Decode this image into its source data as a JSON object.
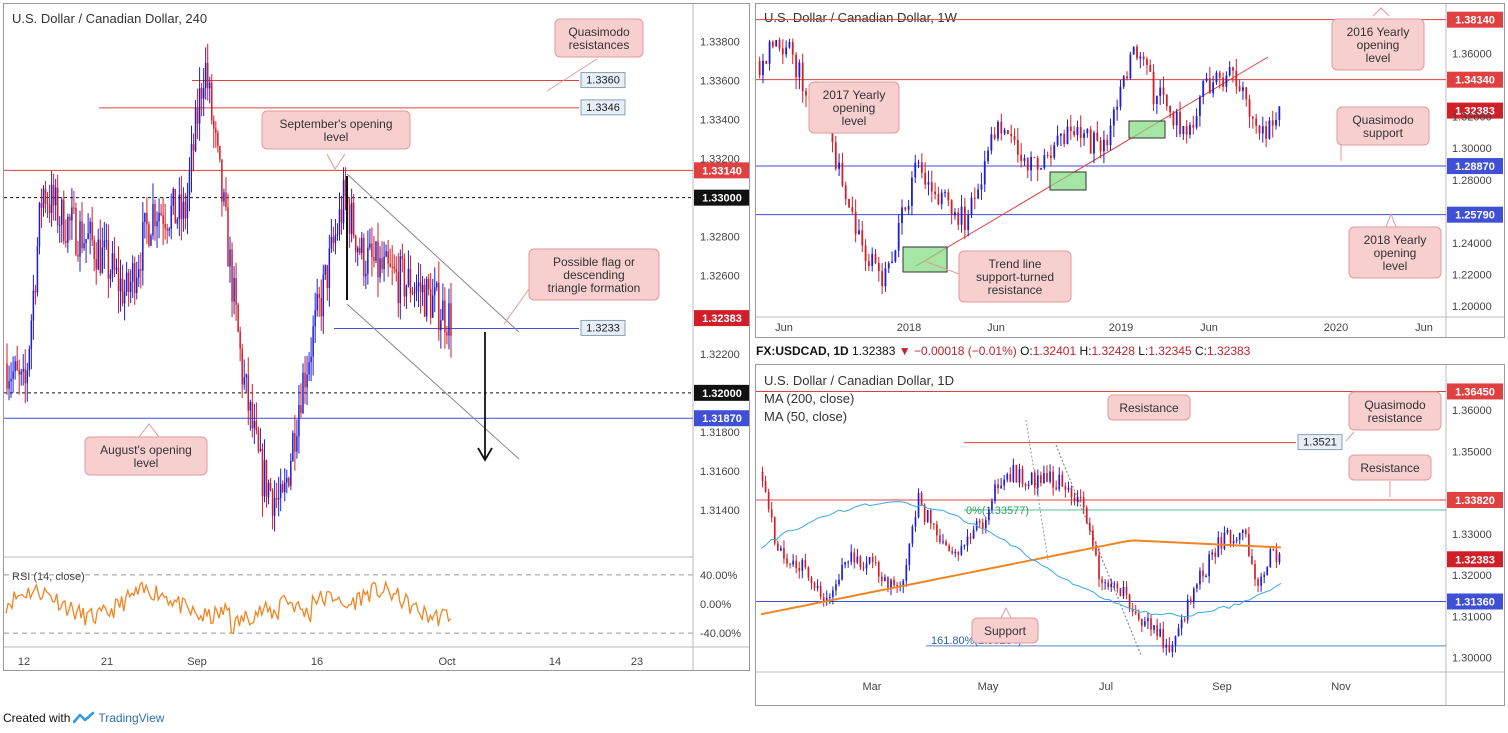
{
  "footer": {
    "created_with": "Created with",
    "brand": "TradingView"
  },
  "info_bar": {
    "symbol": "FX:USDCAD, 1D",
    "last": "1.32383",
    "change": "−0.00018 (−0.01%)",
    "o_label": "O:",
    "o": "1.32401",
    "h_label": "H:",
    "h": "1.32428",
    "l_label": "L:",
    "l": "1.32345",
    "c_label": "C:",
    "c": "1.32383"
  },
  "colors": {
    "bull": "#1f1fd1",
    "bear": "#d11f2a",
    "resistance": "#e04040",
    "support": "#3f4fd6",
    "rsi": "#f08522",
    "ma200": "#f08522",
    "ma50": "#3aa8e6",
    "note_bg": "#f7cfcf",
    "note_border": "#e39a9a",
    "fib": "#5fbf8f"
  },
  "chart_data": [
    {
      "type": "candlestick",
      "title": "U.S. Dollar / Canadian Dollar, 240",
      "ylim": [
        1.312,
        1.339
      ],
      "x_ticks": [
        "12",
        "21",
        "Sep",
        "16",
        "Oct",
        "14",
        "23"
      ],
      "y_ticks": [
        "1.33800",
        "1.33600",
        "1.33400",
        "1.33200",
        "1.32800",
        "1.32600",
        "1.32200",
        "1.31800",
        "1.31600",
        "1.31400"
      ],
      "levels": [
        {
          "value": 1.336,
          "label": "1.3360",
          "kind": "resistance"
        },
        {
          "value": 1.3346,
          "label": "1.3346",
          "kind": "resistance"
        },
        {
          "value": 1.3314,
          "label": "1.33140",
          "kind": "resistance"
        },
        {
          "value": 1.33,
          "label": "1.33000",
          "kind": "round"
        },
        {
          "value": 1.3233,
          "label": "1.3233",
          "kind": "support"
        },
        {
          "value": 1.32,
          "label": "1.32000",
          "kind": "round"
        },
        {
          "value": 1.3187,
          "label": "1.31870",
          "kind": "support"
        }
      ],
      "last_price": "1.32383",
      "annotations": [
        "Quasimodo resistances",
        "September's opening level",
        "Possible flag or descending triangle formation",
        "August's opening level"
      ],
      "rsi": {
        "label": "RSI (14, close)",
        "ticks": [
          "40.00%",
          "0.00%",
          "-40.00%"
        ]
      }
    },
    {
      "type": "candlestick",
      "title": "U.S. Dollar / Canadian Dollar, 1W",
      "ylim": [
        1.195,
        1.385
      ],
      "x_ticks": [
        "Jun",
        "2018",
        "Jun",
        "2019",
        "Jun",
        "2020",
        "Jun"
      ],
      "y_ticks": [
        "1.36000",
        "1.32000",
        "1.30000",
        "1.28000",
        "1.24000",
        "1.22000",
        "1.20000"
      ],
      "levels": [
        {
          "value": 1.3814,
          "label": "1.38140",
          "kind": "resistance"
        },
        {
          "value": 1.3434,
          "label": "1.34340",
          "kind": "resistance"
        },
        {
          "value": 1.2887,
          "label": "1.28870",
          "kind": "support"
        },
        {
          "value": 1.2579,
          "label": "1.25790",
          "kind": "support"
        }
      ],
      "last_price": "1.32383",
      "annotations": [
        "2016 Yearly opening level",
        "2017 Yearly opening level",
        "Quasimodo support",
        "2018 Yearly opening level",
        "Trend line support-turned resistance"
      ]
    },
    {
      "type": "candlestick",
      "title": "U.S. Dollar / Canadian Dollar, 1D",
      "ylim": [
        1.297,
        1.368
      ],
      "x_ticks": [
        "Mar",
        "May",
        "Jul",
        "Sep",
        "Nov"
      ],
      "y_ticks": [
        "1.36000",
        "1.35000",
        "1.33000",
        "1.32000",
        "1.31000",
        "1.30000"
      ],
      "series": [
        {
          "name": "MA (200, close)"
        },
        {
          "name": "MA (50, close)"
        }
      ],
      "levels": [
        {
          "value": 1.3645,
          "label": "1.36450",
          "kind": "resistance"
        },
        {
          "value": 1.3521,
          "label": "1.3521",
          "kind": "resistance"
        },
        {
          "value": 1.3382,
          "label": "1.33820",
          "kind": "resistance"
        },
        {
          "value": 1.3136,
          "label": "1.31360",
          "kind": "support"
        },
        {
          "value": 1.30284,
          "label": "161.80%(1.30284)",
          "kind": "fib"
        }
      ],
      "fib_label": "0%(1.33577)",
      "last_price": "1.32383",
      "annotations": [
        "Resistance",
        "Quasimodo resistance",
        "Resistance",
        "Support"
      ]
    }
  ]
}
